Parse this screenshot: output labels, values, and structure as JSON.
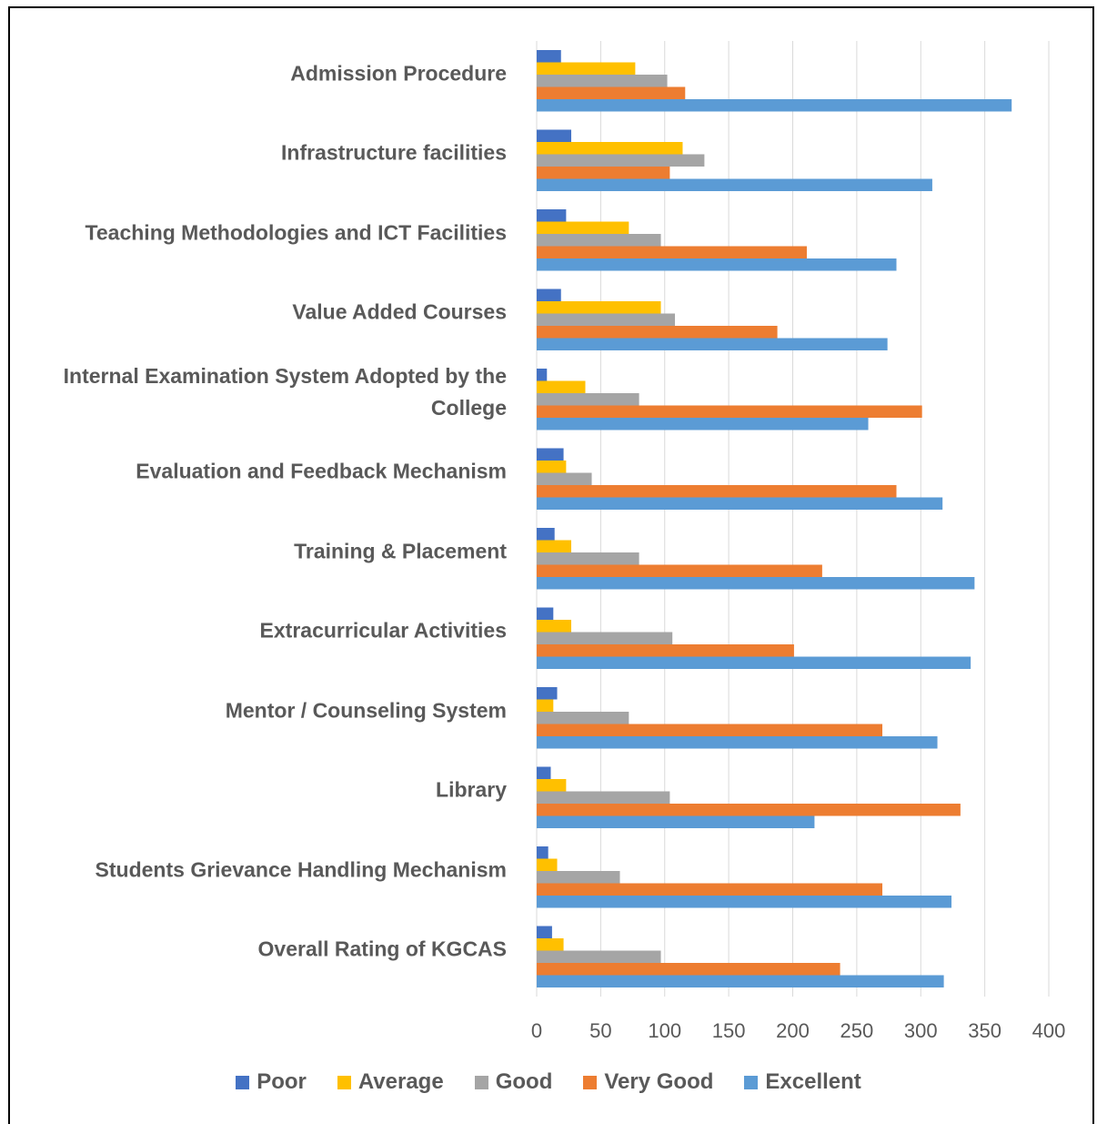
{
  "chart_data": {
    "type": "bar",
    "orientation": "horizontal",
    "categories": [
      "Admission Procedure",
      "Infrastructure facilities",
      "Teaching Methodologies and ICT Facilities",
      "Value Added Courses",
      "Internal Examination System Adopted by the College",
      "Evaluation and Feedback Mechanism",
      "Training & Placement",
      "Extracurricular Activities",
      "Mentor / Counseling System",
      "Library",
      "Students Grievance Handling Mechanism",
      "Overall Rating of KGCAS"
    ],
    "series": [
      {
        "name": "Poor",
        "color": "#4472c4",
        "values": [
          19,
          27,
          23,
          19,
          8,
          21,
          14,
          13,
          16,
          11,
          9,
          12
        ]
      },
      {
        "name": "Average",
        "color": "#ffc000",
        "values": [
          77,
          114,
          72,
          97,
          38,
          23,
          27,
          27,
          13,
          23,
          16,
          21
        ]
      },
      {
        "name": "Good",
        "color": "#a5a5a5",
        "values": [
          102,
          131,
          97,
          108,
          80,
          43,
          80,
          106,
          72,
          104,
          65,
          97
        ]
      },
      {
        "name": "Very Good",
        "color": "#ed7d31",
        "values": [
          116,
          104,
          211,
          188,
          301,
          281,
          223,
          201,
          270,
          331,
          270,
          237
        ]
      },
      {
        "name": "Excellent",
        "color": "#5b9bd5",
        "values": [
          371,
          309,
          281,
          274,
          259,
          317,
          342,
          339,
          313,
          217,
          324,
          318
        ]
      }
    ],
    "xlim": [
      0,
      400
    ],
    "xticks": [
      0,
      50,
      100,
      150,
      200,
      250,
      300,
      350,
      400
    ],
    "grid": true,
    "legend": "bottom"
  }
}
